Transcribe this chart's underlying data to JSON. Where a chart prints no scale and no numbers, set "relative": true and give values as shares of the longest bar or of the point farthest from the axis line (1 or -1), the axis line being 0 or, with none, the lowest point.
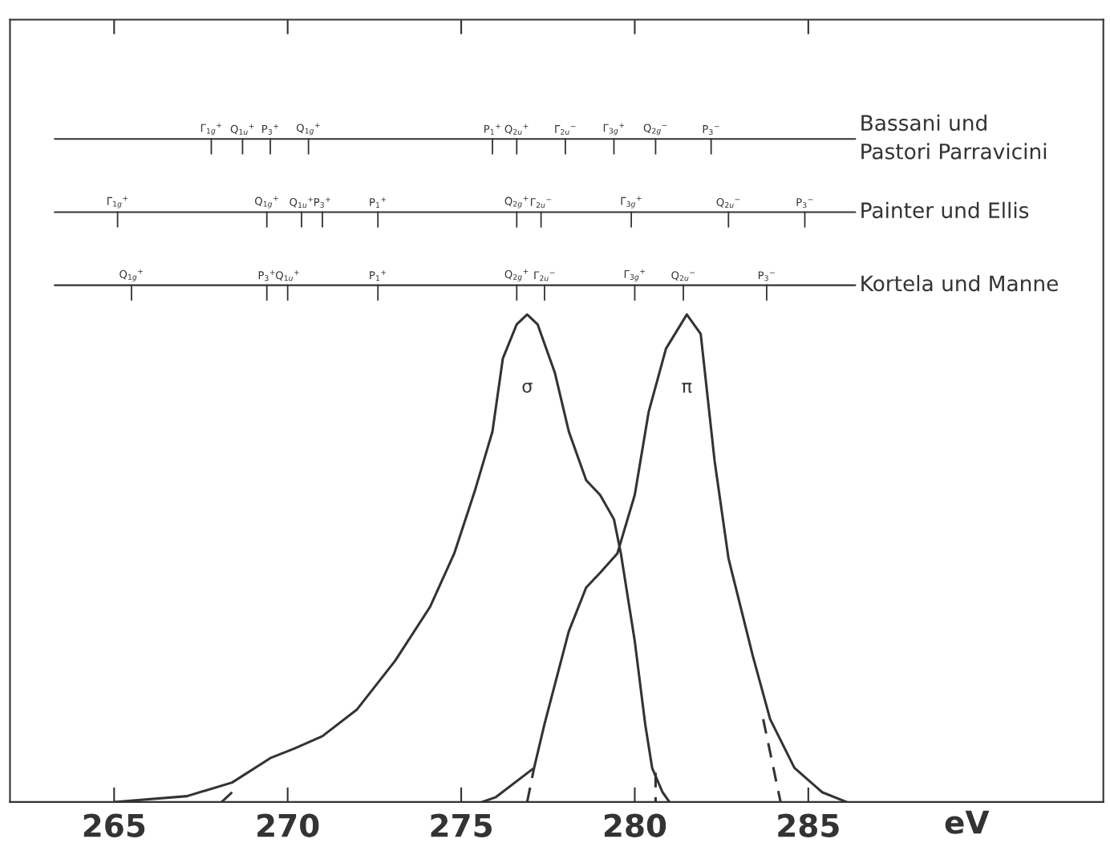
{
  "chart_data": {
    "type": "line",
    "relative": true,
    "xlabel": "eV",
    "xlim": [
      262,
      293.5
    ],
    "xticks": [
      265,
      270,
      275,
      280,
      285
    ],
    "tick_labels": "x",
    "grid": false,
    "legend": false,
    "line_style": "solid",
    "series": [
      {
        "name": "σ",
        "color": "#333333",
        "x": [
          265.0,
          267.1,
          268.4,
          269.5,
          270.2,
          271.0,
          272.0,
          273.1,
          274.1,
          274.8,
          275.4,
          275.9,
          276.2,
          276.6,
          276.9,
          277.2,
          277.7,
          278.1,
          278.6,
          279.0,
          279.4,
          279.6,
          280.0,
          280.3,
          280.5,
          280.8,
          281.0
        ],
        "values": [
          0.0,
          0.012,
          0.04,
          0.09,
          0.11,
          0.135,
          0.19,
          0.29,
          0.4,
          0.51,
          0.64,
          0.76,
          0.91,
          0.98,
          1.0,
          0.98,
          0.88,
          0.76,
          0.66,
          0.63,
          0.58,
          0.51,
          0.33,
          0.16,
          0.07,
          0.02,
          0.0
        ]
      },
      {
        "name": "π",
        "color": "#333333",
        "x": [
          275.6,
          276.0,
          277.1,
          277.4,
          278.1,
          278.6,
          279.0,
          279.5,
          280.0,
          280.4,
          280.9,
          281.5,
          281.9,
          282.3,
          282.7,
          283.4,
          283.9,
          284.6,
          285.4,
          286.1
        ],
        "values": [
          0.0,
          0.01,
          0.07,
          0.16,
          0.35,
          0.44,
          0.47,
          0.51,
          0.63,
          0.8,
          0.93,
          1.0,
          0.96,
          0.7,
          0.5,
          0.3,
          0.17,
          0.07,
          0.02,
          0.0
        ]
      },
      {
        "color": "#333333",
        "line_style": "dashed",
        "x": [
          268.1,
          268.4
        ],
        "values": [
          0.0,
          0.02
        ]
      },
      {
        "color": "#333333",
        "line_style": "dashed",
        "x": [
          276.9,
          277.1
        ],
        "values": [
          0.0,
          0.07
        ]
      },
      {
        "color": "#333333",
        "line_style": "dashed",
        "x": [
          280.6,
          280.6
        ],
        "values": [
          0.06,
          0.0
        ]
      },
      {
        "color": "#333333",
        "line_style": "dashed",
        "x": [
          283.7,
          284.2
        ],
        "values": [
          0.17,
          0.0
        ]
      }
    ],
    "ref_lines": [
      {
        "axis": "y",
        "value": 1.36,
        "label": "Bassani und\nPastori Parravicini",
        "color": "#333333"
      },
      {
        "axis": "y",
        "value": 1.21,
        "label": "Painter und Ellis",
        "color": "#333333"
      },
      {
        "axis": "y",
        "value": 1.06,
        "label": "Kortela und Manne",
        "color": "#333333"
      }
    ],
    "annotations": [
      {
        "text": "Γ$_{1g}$$^{+}$",
        "x": 267.8,
        "y": 1.36
      },
      {
        "text": "Q$_{1u}$$^{+}$",
        "x": 268.7,
        "y": 1.36
      },
      {
        "text": "P$_{3}$$^{+}$",
        "x": 269.5,
        "y": 1.36
      },
      {
        "text": "Q$_{1g}$$^{+}$",
        "x": 270.6,
        "y": 1.36
      },
      {
        "text": "P$_{1}$$^{+}$",
        "x": 275.9,
        "y": 1.36
      },
      {
        "text": "Q$_{2u}$$^{+}$",
        "x": 276.6,
        "y": 1.36
      },
      {
        "text": "Γ$_{2u}$$^{−}$",
        "x": 278.0,
        "y": 1.36
      },
      {
        "text": "Γ$_{3g}$$^{+}$",
        "x": 279.4,
        "y": 1.36
      },
      {
        "text": "Q$_{2g}$$^{−}$",
        "x": 280.6,
        "y": 1.36
      },
      {
        "text": "P$_{3}$$^{−}$",
        "x": 282.2,
        "y": 1.36
      },
      {
        "text": "Γ$_{1g}$$^{+}$",
        "x": 265.1,
        "y": 1.21
      },
      {
        "text": "Q$_{1g}$$^{+}$",
        "x": 269.4,
        "y": 1.21
      },
      {
        "text": "Q$_{1u}$$^{+}$",
        "x": 270.4,
        "y": 1.21
      },
      {
        "text": "P$_{3}$$^{+}$",
        "x": 271.0,
        "y": 1.21
      },
      {
        "text": "P$_{1}$$^{+}$",
        "x": 272.6,
        "y": 1.21
      },
      {
        "text": "Q$_{2g}$$^{+}$",
        "x": 276.6,
        "y": 1.21
      },
      {
        "text": "Γ$_{2u}$$^{−}$",
        "x": 277.3,
        "y": 1.21
      },
      {
        "text": "Γ$_{3g}$$^{+}$",
        "x": 279.9,
        "y": 1.21
      },
      {
        "text": "Q$_{2u}$$^{−}$",
        "x": 282.7,
        "y": 1.21
      },
      {
        "text": "P$_{3}$$^{−}$",
        "x": 284.9,
        "y": 1.21
      },
      {
        "text": "Q$_{1g}$$^{+}$",
        "x": 265.5,
        "y": 1.06
      },
      {
        "text": "P$_{3}$$^{+}$",
        "x": 269.4,
        "y": 1.06
      },
      {
        "text": "Q$_{1u}$$^{+}$",
        "x": 270.0,
        "y": 1.06
      },
      {
        "text": "P$_{1}$$^{+}$",
        "x": 272.6,
        "y": 1.06
      },
      {
        "text": "Q$_{2g}$$^{+}$",
        "x": 276.6,
        "y": 1.06
      },
      {
        "text": "Γ$_{2u}$$^{−}$",
        "x": 277.4,
        "y": 1.06
      },
      {
        "text": "Γ$_{3g}$$^{+}$",
        "x": 280.0,
        "y": 1.06
      },
      {
        "text": "Q$_{2u}$$^{−}$",
        "x": 281.4,
        "y": 1.06
      },
      {
        "text": "P$_{3}$$^{−}$",
        "x": 283.8,
        "y": 1.06
      }
    ]
  }
}
